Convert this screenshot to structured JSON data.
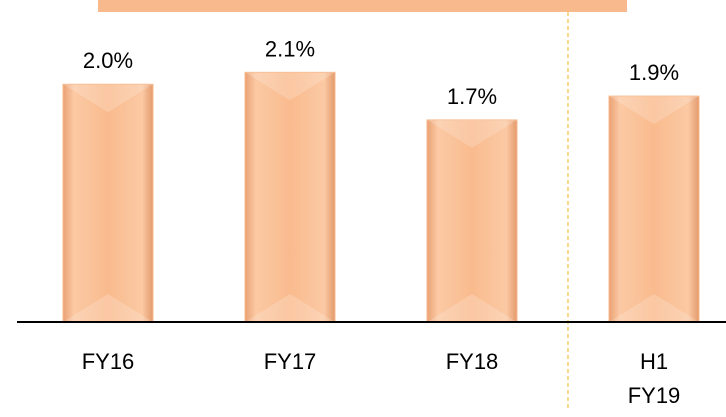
{
  "chart_data": {
    "type": "bar",
    "categories": [
      "FY16",
      "FY17",
      "FY18",
      "H1 FY19"
    ],
    "values": [
      2.0,
      2.1,
      1.7,
      1.9
    ],
    "value_labels": [
      "2.0%",
      "2.1%",
      "1.7%",
      "1.9%"
    ],
    "color": "#f9b98a",
    "ylim": [
      0,
      2.7
    ]
  }
}
